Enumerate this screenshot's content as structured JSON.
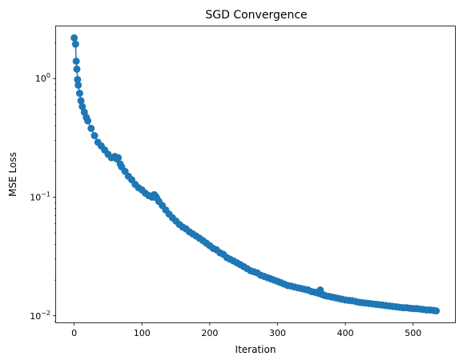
{
  "chart_data": {
    "type": "line",
    "title": "SGD Convergence",
    "xlabel": "Iteration",
    "ylabel": "MSE Loss",
    "yscale": "log",
    "xlim": [
      -26.7,
      561.7
    ],
    "ylim": [
      0.0088,
      2.75
    ],
    "x_ticks": [
      0,
      100,
      200,
      300,
      400,
      500
    ],
    "x_tick_labels": [
      "0",
      "100",
      "200",
      "300",
      "400",
      "500"
    ],
    "y_ticks": [
      0.01,
      0.1,
      1
    ],
    "y_tick_labels": [
      "10",
      "10",
      "10"
    ],
    "y_tick_exponents": [
      "−2",
      "−1",
      "0"
    ],
    "grid": false,
    "legend": "none",
    "series": [
      {
        "color": "#1f77b4",
        "marker": "circle",
        "x": [
          0,
          2,
          3,
          4,
          5,
          6,
          8,
          10,
          12,
          15,
          18,
          20,
          25,
          30,
          35,
          40,
          45,
          50,
          55,
          60,
          63,
          65,
          68,
          70,
          75,
          80,
          85,
          90,
          95,
          100,
          105,
          110,
          115,
          118,
          120,
          122,
          125,
          130,
          135,
          140,
          145,
          150,
          155,
          160,
          165,
          170,
          175,
          180,
          185,
          190,
          195,
          200,
          205,
          210,
          215,
          220,
          225,
          230,
          235,
          240,
          245,
          250,
          255,
          260,
          265,
          270,
          275,
          280,
          285,
          290,
          295,
          300,
          305,
          310,
          315,
          320,
          325,
          330,
          335,
          340,
          345,
          350,
          355,
          360,
          363,
          365,
          368,
          370,
          375,
          380,
          385,
          390,
          395,
          400,
          405,
          410,
          415,
          420,
          425,
          430,
          435,
          440,
          445,
          450,
          455,
          460,
          465,
          470,
          475,
          480,
          485,
          490,
          495,
          500,
          505,
          510,
          515,
          520,
          525,
          530,
          534
        ],
        "y": [
          2.2,
          1.95,
          1.4,
          1.2,
          0.98,
          0.88,
          0.75,
          0.65,
          0.58,
          0.52,
          0.47,
          0.44,
          0.38,
          0.33,
          0.29,
          0.27,
          0.25,
          0.23,
          0.215,
          0.22,
          0.21,
          0.215,
          0.19,
          0.18,
          0.165,
          0.15,
          0.14,
          0.128,
          0.12,
          0.115,
          0.108,
          0.103,
          0.1,
          0.105,
          0.102,
          0.098,
          0.092,
          0.085,
          0.078,
          0.072,
          0.067,
          0.063,
          0.059,
          0.056,
          0.054,
          0.051,
          0.049,
          0.047,
          0.045,
          0.043,
          0.041,
          0.039,
          0.037,
          0.036,
          0.034,
          0.033,
          0.031,
          0.03,
          0.029,
          0.028,
          0.027,
          0.026,
          0.025,
          0.024,
          0.0235,
          0.023,
          0.022,
          0.0215,
          0.021,
          0.0205,
          0.02,
          0.0195,
          0.019,
          0.0185,
          0.018,
          0.0178,
          0.0175,
          0.0172,
          0.017,
          0.0167,
          0.0165,
          0.016,
          0.0158,
          0.0155,
          0.0165,
          0.0152,
          0.015,
          0.0148,
          0.0146,
          0.0144,
          0.0142,
          0.014,
          0.0138,
          0.0136,
          0.0135,
          0.0134,
          0.0132,
          0.013,
          0.0129,
          0.0128,
          0.0127,
          0.0126,
          0.0125,
          0.0124,
          0.0123,
          0.0122,
          0.0121,
          0.012,
          0.0119,
          0.0118,
          0.0117,
          0.0117,
          0.0116,
          0.0115,
          0.0115,
          0.0114,
          0.0113,
          0.0112,
          0.0112,
          0.0111,
          0.011
        ]
      }
    ]
  }
}
